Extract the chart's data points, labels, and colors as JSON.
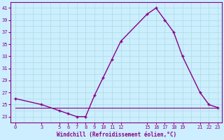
{
  "xlabel": "Windchill (Refroidissement éolien,°C)",
  "bg_color": "#cceeff",
  "grid_color": "#aadddd",
  "line_color": "#880088",
  "ylim": [
    22,
    42
  ],
  "xlim": [
    -0.5,
    23.5
  ],
  "yticks": [
    23,
    25,
    27,
    29,
    31,
    33,
    35,
    37,
    39,
    41
  ],
  "xticks": [
    0,
    3,
    5,
    6,
    7,
    8,
    9,
    10,
    11,
    12,
    15,
    16,
    17,
    18,
    19,
    21,
    22,
    23
  ],
  "xtick_labels": [
    "0",
    "3",
    "5",
    "6",
    "7",
    "8",
    "9",
    "10",
    "11",
    "12",
    "15",
    "16",
    "17",
    "18",
    "19",
    "21",
    "22",
    "23"
  ],
  "series1_x": [
    0,
    3,
    5,
    6,
    7,
    8,
    9,
    10,
    11,
    12,
    15,
    16,
    17,
    18,
    19,
    21,
    22,
    23
  ],
  "series1_y": [
    26.0,
    25.0,
    24.0,
    23.5,
    23.0,
    23.0,
    26.5,
    29.5,
    32.5,
    35.5,
    40.0,
    41.0,
    39.0,
    37.0,
    33.0,
    27.0,
    25.0,
    24.5
  ],
  "series2_x": [
    0,
    12,
    23
  ],
  "series2_y": [
    24.5,
    24.5,
    24.5
  ]
}
